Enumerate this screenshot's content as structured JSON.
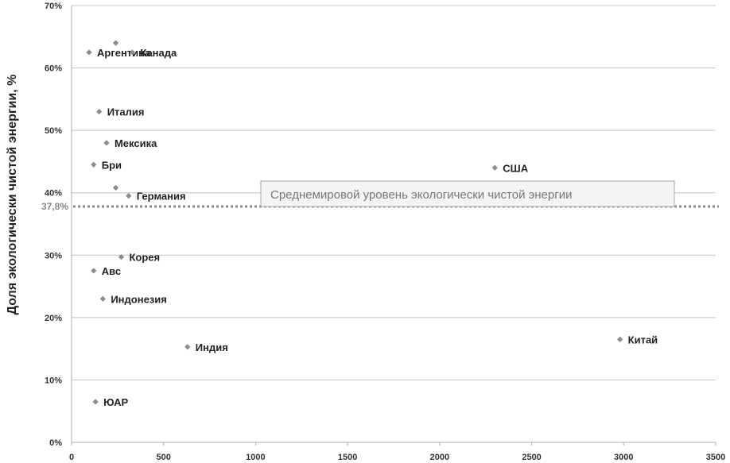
{
  "chart_data": {
    "type": "scatter",
    "title": "",
    "xlabel": "",
    "ylabel": "Доля экологически чистой энергии, %",
    "xlim": [
      0,
      3500
    ],
    "ylim": [
      0,
      70
    ],
    "x_ticks": [
      "0",
      "500",
      "1000",
      "1500",
      "2000",
      "2500",
      "3000",
      "3500"
    ],
    "y_ticks": [
      "0%",
      "10%",
      "20%",
      "30%",
      "40%",
      "50%",
      "60%",
      "70%"
    ],
    "grid": "horizontal",
    "reference_line": {
      "value": 37.8,
      "label": "37,8%",
      "style": "dotted"
    },
    "callout": "Среднемировой уровень экологически чистой энергии",
    "points": [
      {
        "x": 95,
        "y": 62.5,
        "label": "Аргентина"
      },
      {
        "x": 240,
        "y": 64,
        "label": ""
      },
      {
        "x": 330,
        "y": 62.5,
        "label": "Канада"
      },
      {
        "x": 150,
        "y": 53,
        "label": "Италия"
      },
      {
        "x": 190,
        "y": 48,
        "label": "Мексика"
      },
      {
        "x": 120,
        "y": 44.5,
        "label": "Бри"
      },
      {
        "x": 240,
        "y": 40.8,
        "label": ""
      },
      {
        "x": 310,
        "y": 39.5,
        "label": "Германия"
      },
      {
        "x": 2300,
        "y": 44,
        "label": "США"
      },
      {
        "x": 270,
        "y": 29.7,
        "label": "Корея"
      },
      {
        "x": 120,
        "y": 27.5,
        "label": "Авс"
      },
      {
        "x": 170,
        "y": 23,
        "label": "Индонезия"
      },
      {
        "x": 630,
        "y": 15.3,
        "label": "Индия"
      },
      {
        "x": 2980,
        "y": 16.5,
        "label": "Китай"
      },
      {
        "x": 130,
        "y": 6.5,
        "label": "ЮАР"
      }
    ]
  }
}
